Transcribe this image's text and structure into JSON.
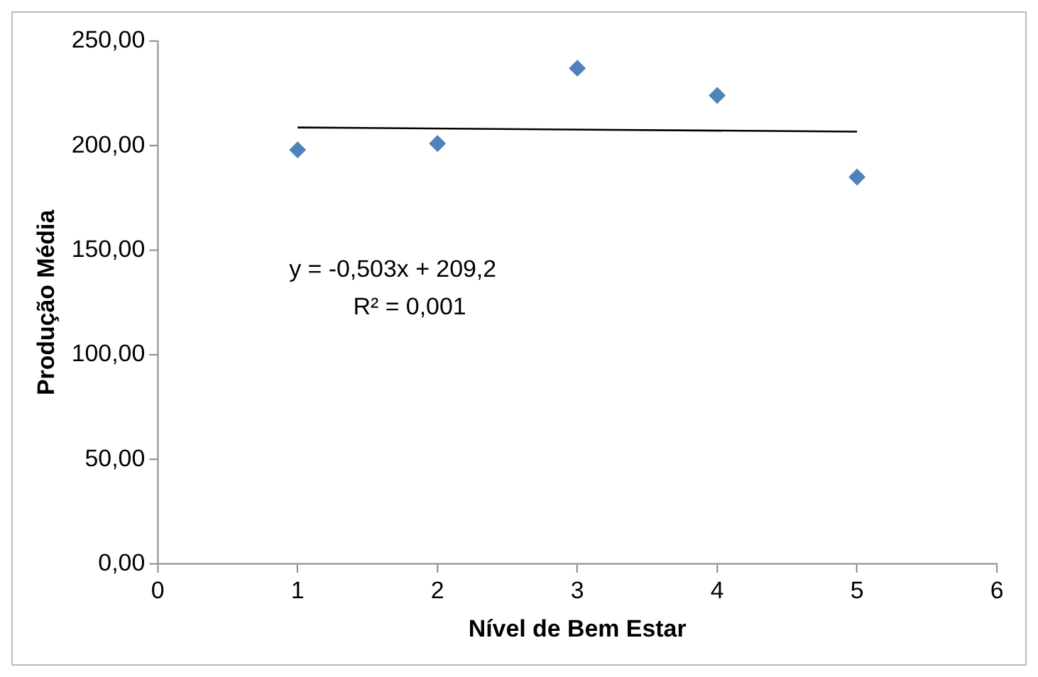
{
  "chart_data": {
    "type": "scatter",
    "xlabel": "Nível de Bem Estar",
    "ylabel": "Produção Média",
    "xlim": [
      0,
      6
    ],
    "xticks": [
      0,
      1,
      2,
      3,
      4,
      5,
      6
    ],
    "ylim": [
      0,
      250
    ],
    "yticks": [
      {
        "value": 0,
        "label": "0,00"
      },
      {
        "value": 50,
        "label": "50,00"
      },
      {
        "value": 100,
        "label": "100,00"
      },
      {
        "value": 150,
        "label": "150,00"
      },
      {
        "value": 200,
        "label": "200,00"
      },
      {
        "value": 250,
        "label": "250,00"
      }
    ],
    "grid": false,
    "legend": false,
    "marker": "diamond",
    "series": [
      {
        "type": "scatter",
        "color": "#4f81bd",
        "x": [
          1,
          2,
          3,
          4,
          5
        ],
        "values": [
          198,
          201,
          237,
          224,
          185
        ]
      },
      {
        "type": "line",
        "color": "#000000",
        "marker": "none",
        "line_style": "solid",
        "x": [
          1,
          5
        ],
        "values": [
          208.7,
          206.7
        ]
      }
    ],
    "annotations": [
      "y = -0,503x + 209,2",
      "R² = 0,001"
    ]
  }
}
